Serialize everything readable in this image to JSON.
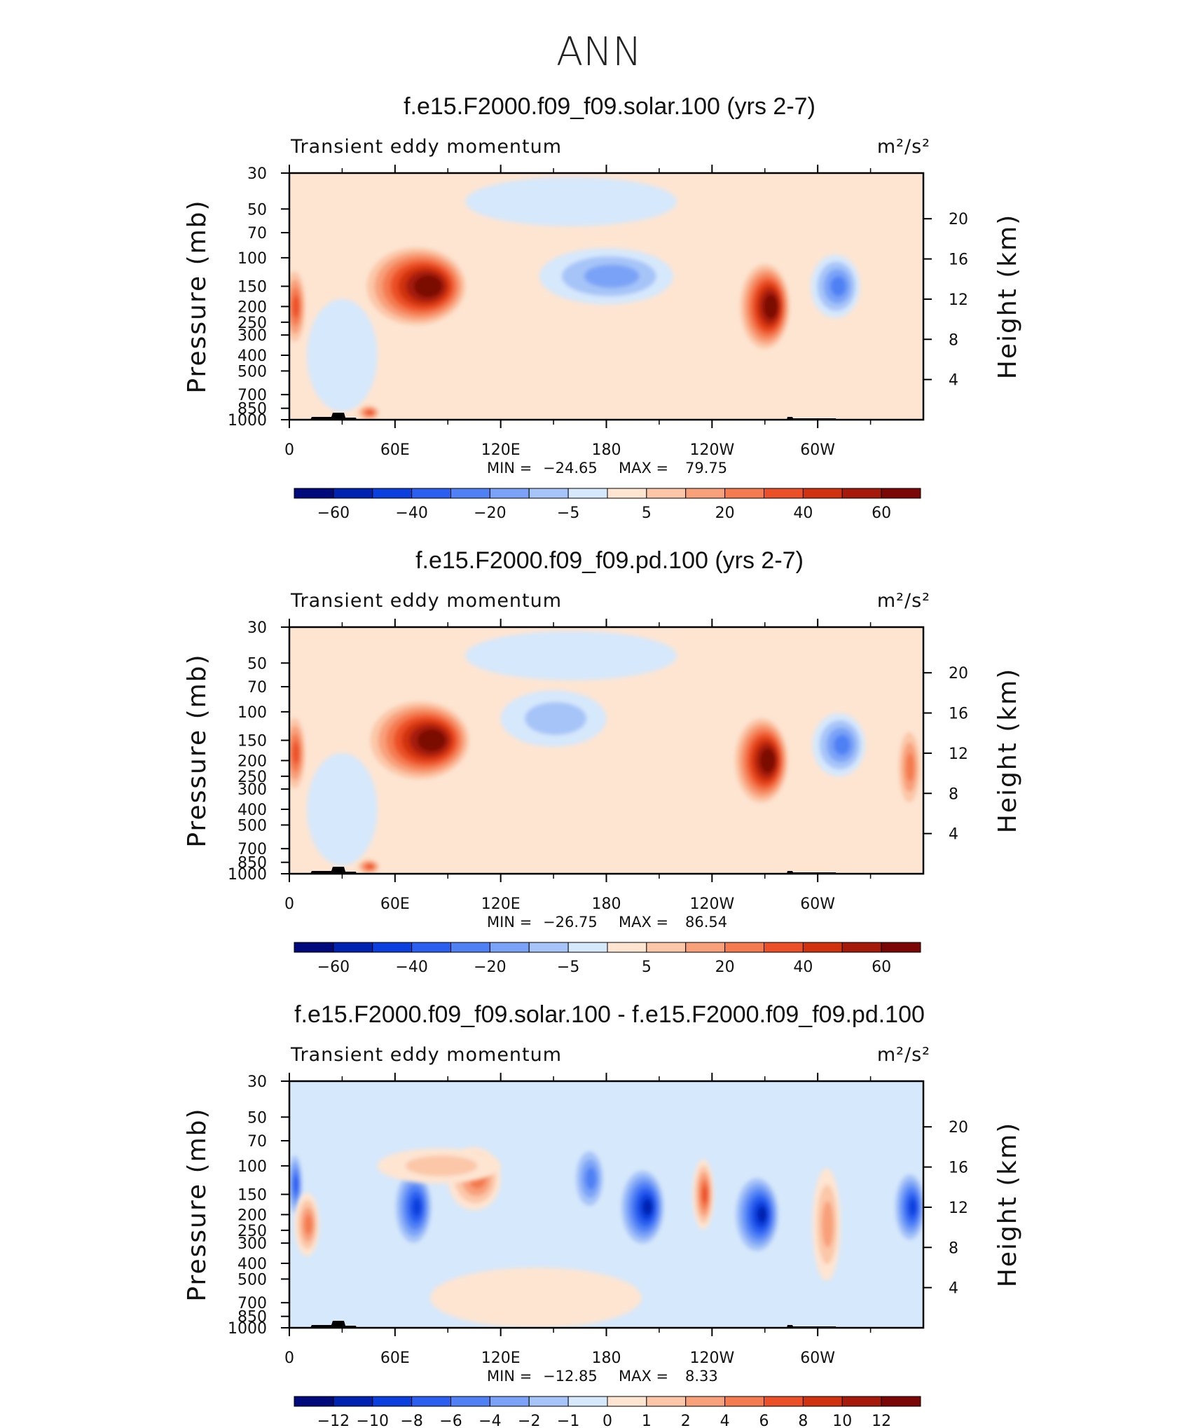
{
  "figure_title": "ANN",
  "colors": {
    "bg_positive_low": "#fde5d2",
    "bg_negative_low": "#d6e8fb",
    "scale": [
      "#000a7a",
      "#0022b0",
      "#0b3fde",
      "#2a5ff0",
      "#4f81f5",
      "#7aa3f7",
      "#a6c4f8",
      "#d6e8fb",
      "#fde5d2",
      "#fbc7a8",
      "#f8a07a",
      "#f47a4f",
      "#ec5028",
      "#d0310e",
      "#a51a0a",
      "#7a0705"
    ]
  },
  "chart_data": [
    {
      "type": "heatmap",
      "title": "f.e15.F2000.f09_f09.solar.100 (yrs 2-7)",
      "left_label": "Transient eddy momentum",
      "right_label": "m²/s²",
      "ylabel": "Pressure (mb)",
      "ylabel_right": "Height (km)",
      "pressure_ticks": [
        "30",
        "50",
        "70",
        "100",
        "150",
        "200",
        "250",
        "300",
        "400",
        "500",
        "700",
        "850",
        "1000"
      ],
      "height_ticks": [
        "20",
        "16",
        "12",
        "8",
        "4"
      ],
      "x_ticks": [
        "0",
        "60E",
        "120E",
        "180",
        "120W",
        "60W"
      ],
      "min_label": "MIN =",
      "min": "−24.65",
      "max_label": "MAX =",
      "max": "79.75",
      "colorbar_labels": [
        "−60",
        "−40",
        "−20",
        "−5",
        "5",
        "20",
        "40",
        "60"
      ],
      "background": "#fde5d2",
      "features": [
        {
          "kind": "max",
          "lon": 72,
          "p": 150,
          "value": 79.75,
          "rx_deg": 28,
          "ry_p": 0.55
        },
        {
          "kind": "max",
          "lon": 270,
          "p": 200,
          "value": 62,
          "rx_deg": 14,
          "ry_p": 0.6
        },
        {
          "kind": "max",
          "lon": 3,
          "p": 200,
          "value": 20,
          "rx_deg": 6,
          "ry_p": 0.5
        },
        {
          "kind": "max",
          "lon": 45,
          "p": 950,
          "value": 22,
          "rx_deg": 6,
          "ry_p": 0.15
        },
        {
          "kind": "min",
          "lon": 180,
          "p": 130,
          "value": -15,
          "rx_deg": 38,
          "ry_p": 0.4
        },
        {
          "kind": "min",
          "lon": 310,
          "p": 150,
          "value": -24.65,
          "rx_deg": 14,
          "ry_p": 0.45
        },
        {
          "kind": "min",
          "lon": 160,
          "p": 45,
          "value": -5,
          "rx_deg": 60,
          "ry_p": 0.35
        },
        {
          "kind": "min",
          "lon": 30,
          "p": 400,
          "value": -4,
          "rx_deg": 20,
          "ry_p": 0.8
        }
      ]
    },
    {
      "type": "heatmap",
      "title": "f.e15.F2000.f09_f09.pd.100 (yrs 2-7)",
      "left_label": "Transient eddy momentum",
      "right_label": "m²/s²",
      "ylabel": "Pressure (mb)",
      "ylabel_right": "Height (km)",
      "pressure_ticks": [
        "30",
        "50",
        "70",
        "100",
        "150",
        "200",
        "250",
        "300",
        "400",
        "500",
        "700",
        "850",
        "1000"
      ],
      "height_ticks": [
        "20",
        "16",
        "12",
        "8",
        "4"
      ],
      "x_ticks": [
        "0",
        "60E",
        "120E",
        "180",
        "120W",
        "60W"
      ],
      "min_label": "MIN =",
      "min": "−26.75",
      "max_label": "MAX =",
      "max": "86.54",
      "colorbar_labels": [
        "−60",
        "−40",
        "−20",
        "−5",
        "5",
        "20",
        "40",
        "60"
      ],
      "background": "#fde5d2",
      "features": [
        {
          "kind": "max",
          "lon": 74,
          "p": 150,
          "value": 86.54,
          "rx_deg": 28,
          "ry_p": 0.55
        },
        {
          "kind": "max",
          "lon": 268,
          "p": 200,
          "value": 68,
          "rx_deg": 15,
          "ry_p": 0.6
        },
        {
          "kind": "max",
          "lon": 3,
          "p": 180,
          "value": 22,
          "rx_deg": 6,
          "ry_p": 0.5
        },
        {
          "kind": "max",
          "lon": 352,
          "p": 220,
          "value": 15,
          "rx_deg": 6,
          "ry_p": 0.5
        },
        {
          "kind": "max",
          "lon": 45,
          "p": 950,
          "value": 24,
          "rx_deg": 6,
          "ry_p": 0.15
        },
        {
          "kind": "min",
          "lon": 150,
          "p": 110,
          "value": -12,
          "rx_deg": 30,
          "ry_p": 0.4
        },
        {
          "kind": "min",
          "lon": 312,
          "p": 160,
          "value": -26.75,
          "rx_deg": 15,
          "ry_p": 0.45
        },
        {
          "kind": "min",
          "lon": 160,
          "p": 45,
          "value": -5,
          "rx_deg": 60,
          "ry_p": 0.35
        },
        {
          "kind": "min",
          "lon": 30,
          "p": 400,
          "value": -4,
          "rx_deg": 20,
          "ry_p": 0.8
        }
      ]
    },
    {
      "type": "heatmap",
      "title": "f.e15.F2000.f09_f09.solar.100 - f.e15.F2000.f09_f09.pd.100",
      "left_label": "Transient eddy momentum",
      "right_label": "m²/s²",
      "ylabel": "Pressure (mb)",
      "ylabel_right": "Height (km)",
      "pressure_ticks": [
        "30",
        "50",
        "70",
        "100",
        "150",
        "200",
        "250",
        "300",
        "400",
        "500",
        "700",
        "850",
        "1000"
      ],
      "height_ticks": [
        "20",
        "16",
        "12",
        "8",
        "4"
      ],
      "x_ticks": [
        "0",
        "60E",
        "120E",
        "180",
        "120W",
        "60W"
      ],
      "min_label": "MIN =",
      "min": "−12.85",
      "max_label": "MAX =",
      "max": "8.33",
      "colorbar_labels": [
        "−12",
        "−10",
        "−8",
        "−6",
        "−4",
        "−2",
        "−1",
        "0",
        "1",
        "2",
        "4",
        "6",
        "8",
        "10",
        "12"
      ],
      "background": "#d6e8fb",
      "features": [
        {
          "kind": "min",
          "lon": 3,
          "p": 130,
          "value": -8,
          "rx_deg": 5,
          "ry_p": 0.5
        },
        {
          "kind": "min",
          "lon": 70,
          "p": 180,
          "value": -10,
          "rx_deg": 12,
          "ry_p": 0.6
        },
        {
          "kind": "min",
          "lon": 200,
          "p": 180,
          "value": -12,
          "rx_deg": 14,
          "ry_p": 0.6
        },
        {
          "kind": "min",
          "lon": 265,
          "p": 200,
          "value": -12.85,
          "rx_deg": 14,
          "ry_p": 0.6
        },
        {
          "kind": "min",
          "lon": 352,
          "p": 180,
          "value": -11,
          "rx_deg": 10,
          "ry_p": 0.55
        },
        {
          "kind": "min",
          "lon": 170,
          "p": 120,
          "value": -6,
          "rx_deg": 10,
          "ry_p": 0.5
        },
        {
          "kind": "max",
          "lon": 10,
          "p": 230,
          "value": 6,
          "rx_deg": 7,
          "ry_p": 0.45
        },
        {
          "kind": "max",
          "lon": 105,
          "p": 120,
          "value": 6,
          "rx_deg": 15,
          "ry_p": 0.45
        },
        {
          "kind": "max",
          "lon": 235,
          "p": 150,
          "value": 8.33,
          "rx_deg": 6,
          "ry_p": 0.5
        },
        {
          "kind": "max",
          "lon": 305,
          "p": 230,
          "value": 4,
          "rx_deg": 8,
          "ry_p": 0.8
        },
        {
          "kind": "max",
          "lon": 85,
          "p": 100,
          "value": 2,
          "rx_deg": 35,
          "ry_p": 0.25
        },
        {
          "kind": "max",
          "lon": 140,
          "p": 700,
          "value": 1,
          "rx_deg": 60,
          "ry_p": 0.5
        }
      ]
    }
  ]
}
